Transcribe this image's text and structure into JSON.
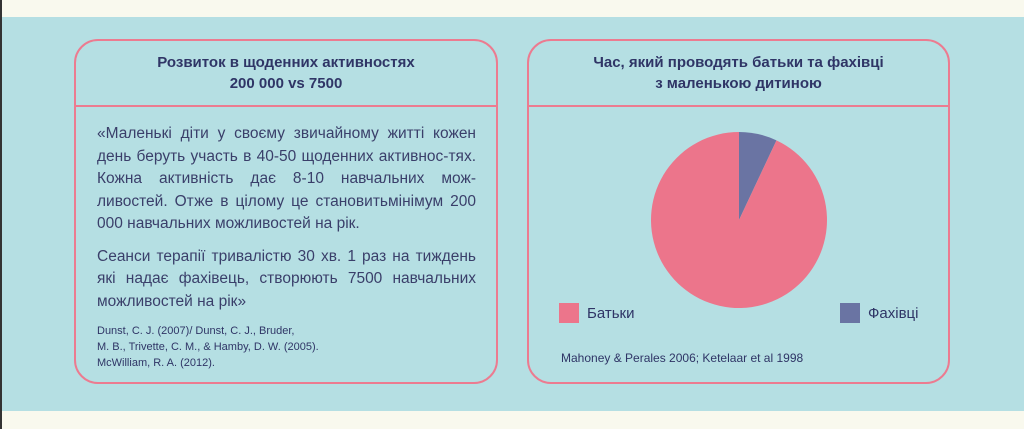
{
  "left_card": {
    "title_line1": "Розвиток в щоденних активностях",
    "title_line2": "200 000 vs 7500",
    "paragraph1": "«Маленькі діти у своєму звичайному житті кожен день беруть участь в 40-50 щоденних активнос-тях. Кожна активність дає 8-10 навчальних мож-ливостей. Отже в цілому це становитьмінімум 200 000 навчальних можливостей на рік.",
    "paragraph2": "Сеанси терапії тривалістю 30 хв. 1 раз на тиждень які надає фахівець, створюють 7500 навчальних можливостей на рік»",
    "refs": [
      "Dunst, C. J. (2007)/ Dunst, C. J., Bruder,",
      "M. B., Trivette, C. M., & Hamby, D. W. (2005).",
      "McWilliam, R. A. (2012)."
    ]
  },
  "chart_data": {
    "type": "pie",
    "title": "Час, який проводять батьки та фахівці з маленькою дитиною",
    "title_line1": "Час, який проводять батьки та фахівці",
    "title_line2": "з маленькою дитиною",
    "categories": [
      "Батьки",
      "Фахівці"
    ],
    "values": [
      93,
      7
    ],
    "colors": [
      "#ec758b",
      "#6a74a3"
    ],
    "legend": "bottom",
    "source": "Mahoney & Perales 2006; Ketelaar et al 1998"
  }
}
